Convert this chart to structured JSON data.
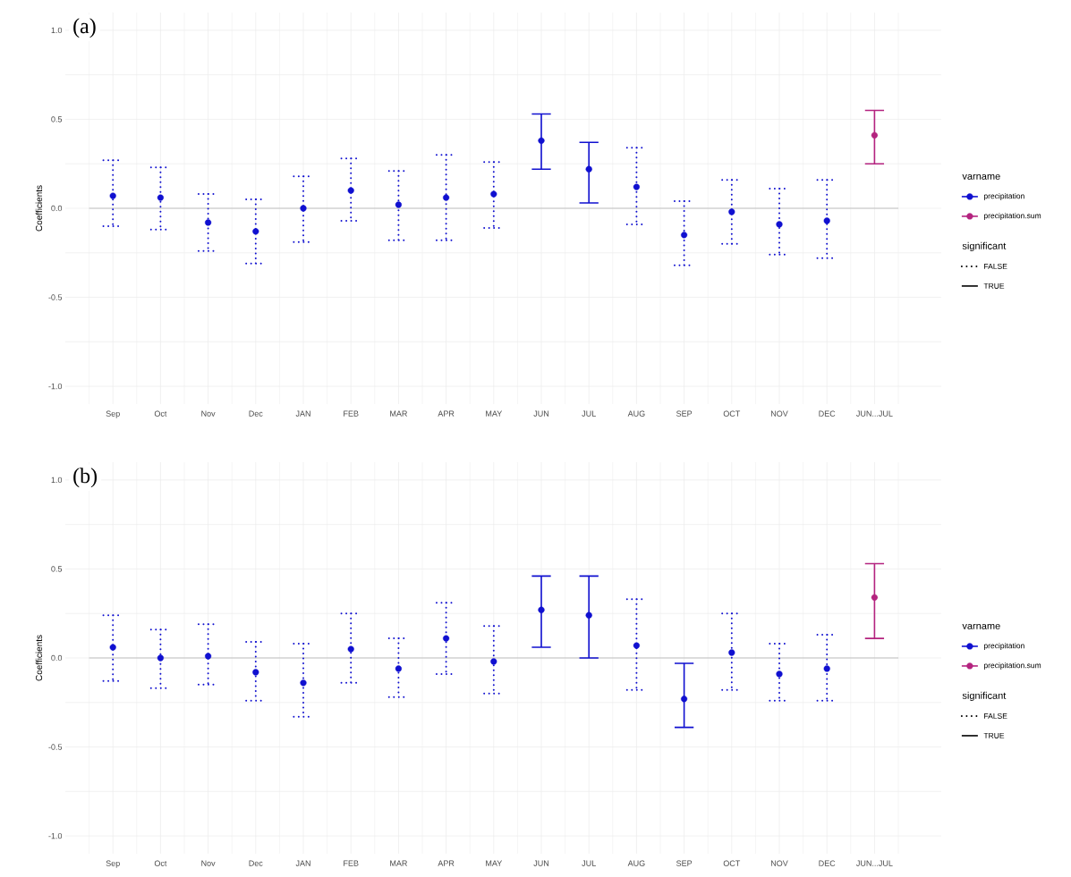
{
  "chart_data": [
    {
      "type": "scatter",
      "title": "(a)",
      "ylabel": "Coefficients",
      "legend_title": "varname",
      "legend": "right",
      "grid": true,
      "marker": "circle",
      "categories": [
        "Sep",
        "Oct",
        "Nov",
        "Dec",
        "JAN",
        "FEB",
        "MAR",
        "APR",
        "MAY",
        "JUN",
        "JUL",
        "AUG",
        "SEP",
        "OCT",
        "NOV",
        "DEC",
        "JUN...JUL"
      ],
      "ylim": [
        -1.1,
        1.1
      ],
      "yticks": [
        {
          "value": -1,
          "label": "-1.0"
        },
        {
          "value": -0.75,
          "label": null
        },
        {
          "value": -0.5,
          "label": "-0.5"
        },
        {
          "value": -0.25,
          "label": null
        },
        {
          "value": 0,
          "label": "0.0"
        },
        {
          "value": 0.25,
          "label": null
        },
        {
          "value": 0.5,
          "label": "0.5"
        },
        {
          "value": 0.75,
          "label": null
        },
        {
          "value": 1,
          "label": "1.0"
        }
      ],
      "ref_lines": [
        {
          "axis": "y",
          "value": 0,
          "color": "#b3b3b3"
        }
      ],
      "annotations": [
        "significant",
        "FALSE",
        "TRUE"
      ],
      "series": [
        {
          "name": "precipitation",
          "color": "#1010d0",
          "line_style": "dotted",
          "values": [
            0.07,
            0.06,
            -0.08,
            -0.13,
            0.0,
            0.1,
            0.02,
            0.06,
            0.08,
            null,
            null,
            0.12,
            -0.15,
            -0.02,
            -0.09,
            -0.07,
            null
          ],
          "errors": [
            [
              -0.1,
              0.27
            ],
            [
              -0.12,
              0.23
            ],
            [
              -0.24,
              0.08
            ],
            [
              -0.31,
              0.05
            ],
            [
              -0.19,
              0.18
            ],
            [
              -0.07,
              0.28
            ],
            [
              -0.18,
              0.21
            ],
            [
              -0.18,
              0.3
            ],
            [
              -0.11,
              0.26
            ],
            null,
            null,
            [
              -0.09,
              0.34
            ],
            [
              -0.32,
              0.04
            ],
            [
              -0.2,
              0.16
            ],
            [
              -0.26,
              0.11
            ],
            [
              -0.28,
              0.16
            ],
            null
          ]
        },
        {
          "color": "#1010d0",
          "line_style": "solid",
          "values": [
            null,
            null,
            null,
            null,
            null,
            null,
            null,
            null,
            null,
            0.38,
            0.22,
            null,
            null,
            null,
            null,
            null,
            null
          ],
          "errors": [
            null,
            null,
            null,
            null,
            null,
            null,
            null,
            null,
            null,
            [
              0.22,
              0.53
            ],
            [
              0.03,
              0.37
            ],
            null,
            null,
            null,
            null,
            null,
            null
          ]
        },
        {
          "name": "precipitation.sum",
          "color": "#b4237f",
          "line_style": "solid",
          "values": [
            null,
            null,
            null,
            null,
            null,
            null,
            null,
            null,
            null,
            null,
            null,
            null,
            null,
            null,
            null,
            null,
            0.41
          ],
          "errors": [
            null,
            null,
            null,
            null,
            null,
            null,
            null,
            null,
            null,
            null,
            null,
            null,
            null,
            null,
            null,
            null,
            [
              0.25,
              0.55
            ]
          ]
        }
      ]
    },
    {
      "type": "scatter",
      "title": "(b)",
      "ylabel": "Coefficients",
      "legend_title": "varname",
      "legend": "right",
      "grid": true,
      "marker": "circle",
      "categories": [
        "Sep",
        "Oct",
        "Nov",
        "Dec",
        "JAN",
        "FEB",
        "MAR",
        "APR",
        "MAY",
        "JUN",
        "JUL",
        "AUG",
        "SEP",
        "OCT",
        "NOV",
        "DEC",
        "JUN...JUL"
      ],
      "ylim": [
        -1.1,
        1.1
      ],
      "yticks": [
        {
          "value": -1,
          "label": "-1.0"
        },
        {
          "value": -0.75,
          "label": null
        },
        {
          "value": -0.5,
          "label": "-0.5"
        },
        {
          "value": -0.25,
          "label": null
        },
        {
          "value": 0,
          "label": "0.0"
        },
        {
          "value": 0.25,
          "label": null
        },
        {
          "value": 0.5,
          "label": "0.5"
        },
        {
          "value": 0.75,
          "label": null
        },
        {
          "value": 1,
          "label": "1.0"
        }
      ],
      "ref_lines": [
        {
          "axis": "y",
          "value": 0,
          "color": "#b3b3b3"
        }
      ],
      "annotations": [
        "significant",
        "FALSE",
        "TRUE"
      ],
      "series": [
        {
          "name": "precipitation",
          "color": "#1010d0",
          "line_style": "dotted",
          "values": [
            0.06,
            0.0,
            0.01,
            -0.08,
            -0.14,
            0.05,
            -0.06,
            0.11,
            -0.02,
            null,
            null,
            0.07,
            null,
            0.03,
            -0.09,
            -0.06,
            null
          ],
          "errors": [
            [
              -0.13,
              0.24
            ],
            [
              -0.17,
              0.16
            ],
            [
              -0.15,
              0.19
            ],
            [
              -0.24,
              0.09
            ],
            [
              -0.33,
              0.08
            ],
            [
              -0.14,
              0.25
            ],
            [
              -0.22,
              0.11
            ],
            [
              -0.09,
              0.31
            ],
            [
              -0.2,
              0.18
            ],
            null,
            null,
            [
              -0.18,
              0.33
            ],
            null,
            [
              -0.18,
              0.25
            ],
            [
              -0.24,
              0.08
            ],
            [
              -0.24,
              0.13
            ],
            null
          ]
        },
        {
          "color": "#1010d0",
          "line_style": "solid",
          "values": [
            null,
            null,
            null,
            null,
            null,
            null,
            null,
            null,
            null,
            0.27,
            0.24,
            null,
            -0.23,
            null,
            null,
            null,
            null
          ],
          "errors": [
            null,
            null,
            null,
            null,
            null,
            null,
            null,
            null,
            null,
            [
              0.06,
              0.46
            ],
            [
              0.0,
              0.46
            ],
            null,
            [
              -0.39,
              -0.03
            ],
            null,
            null,
            null,
            null
          ]
        },
        {
          "name": "precipitation.sum",
          "color": "#b4237f",
          "line_style": "solid",
          "values": [
            null,
            null,
            null,
            null,
            null,
            null,
            null,
            null,
            null,
            null,
            null,
            null,
            null,
            null,
            null,
            null,
            0.34
          ],
          "errors": [
            null,
            null,
            null,
            null,
            null,
            null,
            null,
            null,
            null,
            null,
            null,
            null,
            null,
            null,
            null,
            null,
            [
              0.11,
              0.53
            ]
          ]
        }
      ]
    }
  ]
}
